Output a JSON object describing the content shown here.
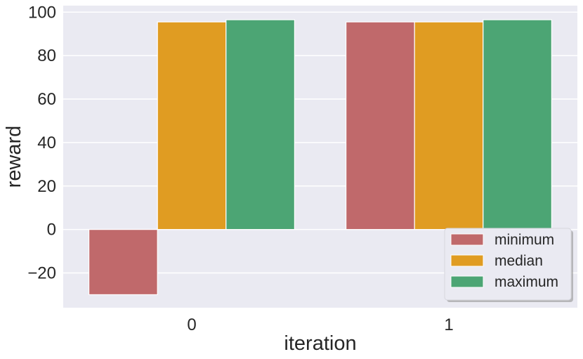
{
  "chart_data": {
    "type": "bar",
    "categories": [
      "0",
      "1"
    ],
    "series": [
      {
        "name": "minimum",
        "color": "#c0696b",
        "values": [
          -30,
          95.5
        ]
      },
      {
        "name": "median",
        "color": "#e09c22",
        "values": [
          95.5,
          95.5
        ]
      },
      {
        "name": "maximum",
        "color": "#4ca574",
        "values": [
          96.5,
          96.5
        ]
      }
    ],
    "xlabel": "iteration",
    "ylabel": "reward",
    "ylim": [
      -36,
      103
    ],
    "yticks": [
      -20,
      0,
      20,
      40,
      60,
      80,
      100
    ],
    "ytick_labels": [
      "−20",
      "0",
      "20",
      "40",
      "60",
      "80",
      "100"
    ],
    "grid": true,
    "legend_position": "lower-right",
    "background_color": "#eaeaf2",
    "grid_color": "#ffffff"
  }
}
